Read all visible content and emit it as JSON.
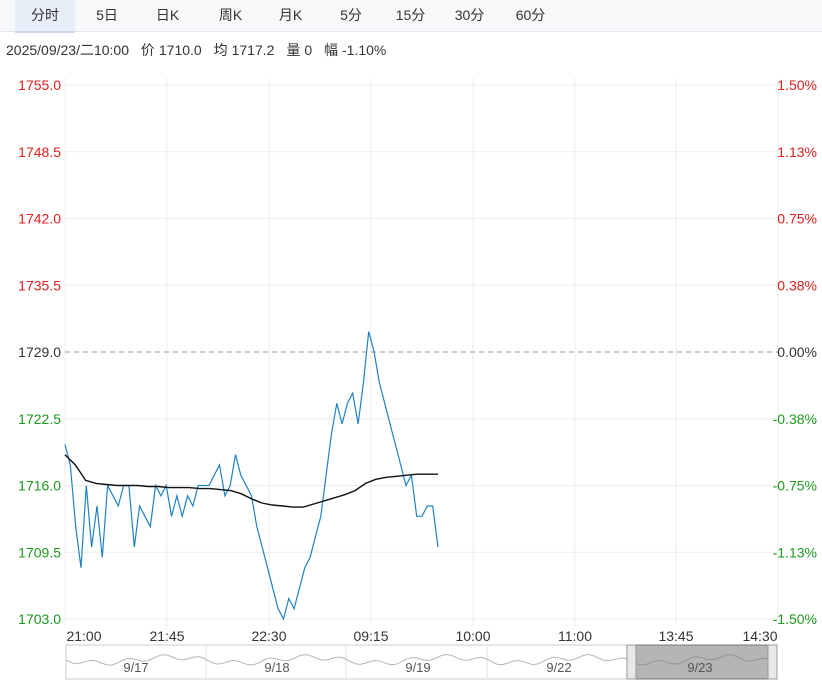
{
  "tabs": [
    {
      "label": "分时",
      "active": true
    },
    {
      "label": "5日",
      "active": false
    },
    {
      "label": "日K",
      "active": false
    },
    {
      "label": "周K",
      "active": false
    },
    {
      "label": "月K",
      "active": false
    },
    {
      "label": "5分",
      "active": false
    },
    {
      "label": "15分",
      "active": false
    },
    {
      "label": "30分",
      "active": false
    },
    {
      "label": "60分",
      "active": false
    }
  ],
  "info": {
    "datetime": "2025/09/23/二10:00",
    "price_label": "价",
    "price": "1710.0",
    "avg_label": "均",
    "avg": "1717.2",
    "vol_label": "量",
    "vol": "0",
    "chg_label": "幅",
    "chg": "-1.10%"
  },
  "colors": {
    "up": "#e0201d",
    "down": "#1d9a1d",
    "neutral": "#333333",
    "price_line": "#1f82c4",
    "avg_line": "#111111",
    "grid": "#ececec"
  },
  "chart_data": {
    "type": "line",
    "reference_price": 1729.0,
    "ylim": [
      1703.0,
      1755.0
    ],
    "y_ticks": [
      "1755.0",
      "1748.5",
      "1742.0",
      "1735.5",
      "1729.0",
      "1722.5",
      "1716.0",
      "1709.5",
      "1703.0"
    ],
    "y_tick_values": [
      1755.0,
      1748.5,
      1742.0,
      1735.5,
      1729.0,
      1722.5,
      1716.0,
      1709.5,
      1703.0
    ],
    "right_ticks": [
      "1.50%",
      "1.13%",
      "0.75%",
      "0.38%",
      "0.00%",
      "-0.38%",
      "-0.75%",
      "-1.13%",
      "-1.50%"
    ],
    "x_ticks": [
      "21:00",
      "21:45",
      "22:30",
      "09:15",
      "10:00",
      "11:00",
      "13:45",
      "14:30"
    ],
    "price_series": [
      1720,
      1718,
      1712,
      1708,
      1716,
      1710,
      1714,
      1709,
      1716,
      1715,
      1714,
      1716,
      1716,
      1710,
      1714,
      1713,
      1712,
      1716,
      1715,
      1716,
      1713,
      1715,
      1713,
      1715,
      1714,
      1716,
      1716,
      1716,
      1717,
      1718,
      1715,
      1716,
      1719,
      1717,
      1716,
      1715,
      1712,
      1710,
      1708,
      1706,
      1704,
      1703,
      1705,
      1704,
      1706,
      1708,
      1709,
      1711,
      1713,
      1717,
      1721,
      1724,
      1722,
      1724,
      1725,
      1722,
      1726,
      1731,
      1729,
      1726,
      1724,
      1722,
      1720,
      1718,
      1716,
      1717,
      1713,
      1713,
      1714,
      1714,
      1710
    ],
    "avg_series": [
      1719,
      1718,
      1716.5,
      1716.2,
      1716.1,
      1716.0,
      1716.0,
      1716.0,
      1715.9,
      1715.9,
      1715.8,
      1715.8,
      1715.8,
      1715.7,
      1715.7,
      1715.6,
      1715.5,
      1715.2,
      1714.7,
      1714.3,
      1714.1,
      1714.0,
      1713.9,
      1713.9,
      1714.2,
      1714.5,
      1714.8,
      1715.1,
      1715.5,
      1716.2,
      1716.6,
      1716.8,
      1716.9,
      1717.0,
      1717.1,
      1717.1,
      1717.1
    ],
    "navigator": {
      "dates": [
        "9/17",
        "9/18",
        "9/19",
        "9/22",
        "9/23"
      ],
      "selected": "9/23"
    }
  }
}
